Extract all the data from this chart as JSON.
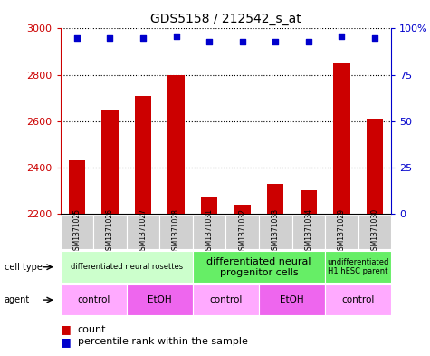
{
  "title": "GDS5158 / 212542_s_at",
  "samples": [
    "GSM1371025",
    "GSM1371026",
    "GSM1371027",
    "GSM1371028",
    "GSM1371031",
    "GSM1371032",
    "GSM1371033",
    "GSM1371034",
    "GSM1371029",
    "GSM1371030"
  ],
  "counts": [
    2430,
    2650,
    2710,
    2800,
    2270,
    2240,
    2330,
    2300,
    2850,
    2610
  ],
  "percentiles": [
    95,
    95,
    95,
    96,
    93,
    93,
    93,
    93,
    96,
    95
  ],
  "ymin": 2200,
  "ymax": 3000,
  "yticks_left": [
    2200,
    2400,
    2600,
    2800,
    3000
  ],
  "yticks_right": [
    0,
    25,
    50,
    75,
    100
  ],
  "bar_color": "#cc0000",
  "dot_color": "#0000cc",
  "cell_type_groups": [
    {
      "label": "differentiated neural rosettes",
      "start": 0,
      "end": 4,
      "color": "#ccffcc",
      "fontsize": 6
    },
    {
      "label": "differentiated neural\nprogenitor cells",
      "start": 4,
      "end": 8,
      "color": "#66ee66",
      "fontsize": 8
    },
    {
      "label": "undifferentiated\nH1 hESC parent",
      "start": 8,
      "end": 10,
      "color": "#66ee66",
      "fontsize": 6
    }
  ],
  "agent_groups": [
    {
      "label": "control",
      "start": 0,
      "end": 2,
      "color": "#ffaaff"
    },
    {
      "label": "EtOH",
      "start": 2,
      "end": 4,
      "color": "#ee66ee"
    },
    {
      "label": "control",
      "start": 4,
      "end": 6,
      "color": "#ffaaff"
    },
    {
      "label": "EtOH",
      "start": 6,
      "end": 8,
      "color": "#ee66ee"
    },
    {
      "label": "control",
      "start": 8,
      "end": 10,
      "color": "#ffaaff"
    }
  ],
  "left_axis_color": "#cc0000",
  "right_axis_color": "#0000cc",
  "sample_bg_color": "#d0d0d0",
  "bar_width": 0.5
}
